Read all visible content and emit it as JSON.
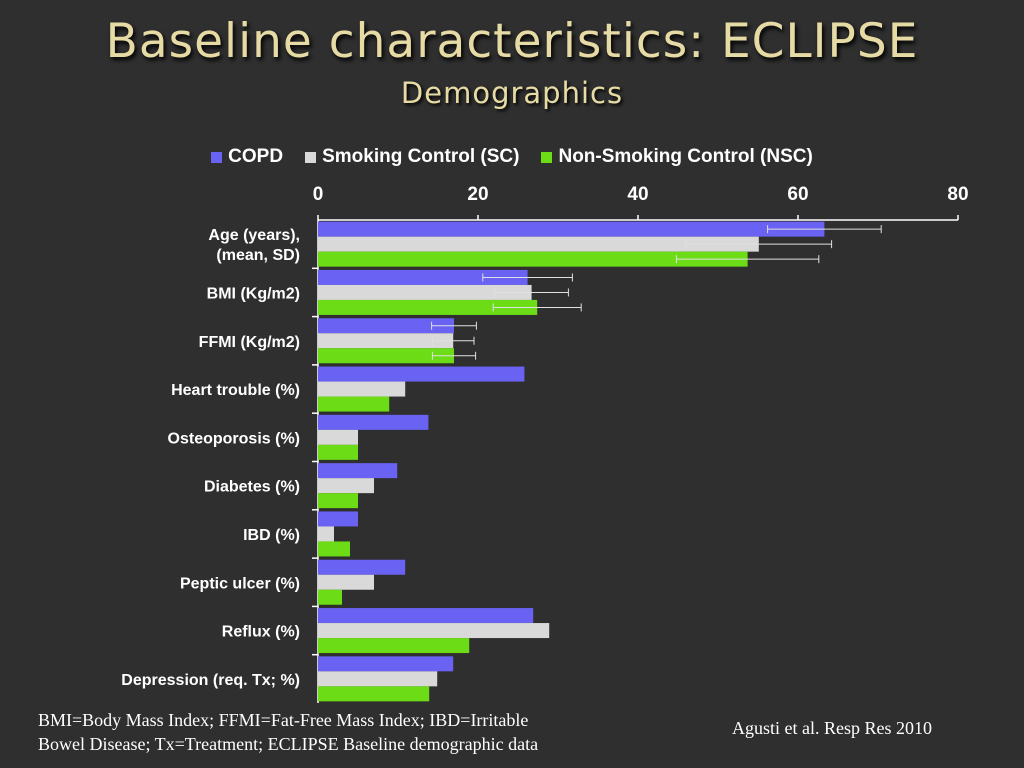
{
  "slide": {
    "title": "Baseline characteristics: ECLIPSE",
    "subtitle": "Demographics",
    "footnote_line1": "BMI=Body Mass Index; FFMI=Fat-Free Mass Index;  IBD=Irritable",
    "footnote_line2": "Bowel Disease; Tx=Treatment; ECLIPSE  Baseline demographic data",
    "citation": "Agusti et al. Resp Res 2010"
  },
  "chart_data": {
    "type": "bar",
    "orientation": "horizontal",
    "xlim": [
      0,
      80
    ],
    "xticks": [
      0,
      20,
      40,
      60,
      80
    ],
    "legend_position": "top",
    "categories": [
      [
        "Age (years),",
        "(mean, SD)"
      ],
      [
        "BMI (Kg/m2)"
      ],
      [
        "FFMI (Kg/m2)"
      ],
      [
        "Heart trouble (%)"
      ],
      [
        "Osteoporosis (%)"
      ],
      [
        "Diabetes (%)"
      ],
      [
        "IBD (%)"
      ],
      [
        "Peptic ulcer (%)"
      ],
      [
        "Reflux (%)"
      ],
      [
        "Depression (req. Tx; %)"
      ]
    ],
    "series": [
      {
        "name": "COPD",
        "color": "#6a62f2",
        "values": [
          63.3,
          26.2,
          17.0,
          25.8,
          13.8,
          9.9,
          5.0,
          10.9,
          26.9,
          16.9
        ],
        "errors": [
          7.1,
          5.6,
          2.8,
          null,
          null,
          null,
          null,
          null,
          null,
          null
        ]
      },
      {
        "name": "Smoking Control (SC)",
        "color": "#d9d9d9",
        "values": [
          55.1,
          26.7,
          16.9,
          10.9,
          5.0,
          7.0,
          2.0,
          7.0,
          28.9,
          14.9
        ],
        "errors": [
          9.1,
          4.6,
          2.6,
          null,
          null,
          null,
          null,
          null,
          null,
          null
        ]
      },
      {
        "name": "Non-Smoking Control (NSC)",
        "color": "#6bdc16",
        "values": [
          53.7,
          27.4,
          17.0,
          8.9,
          5.0,
          5.0,
          4.0,
          3.0,
          18.9,
          13.9
        ],
        "errors": [
          8.9,
          5.5,
          2.7,
          null,
          null,
          null,
          null,
          null,
          null,
          null
        ]
      }
    ]
  }
}
